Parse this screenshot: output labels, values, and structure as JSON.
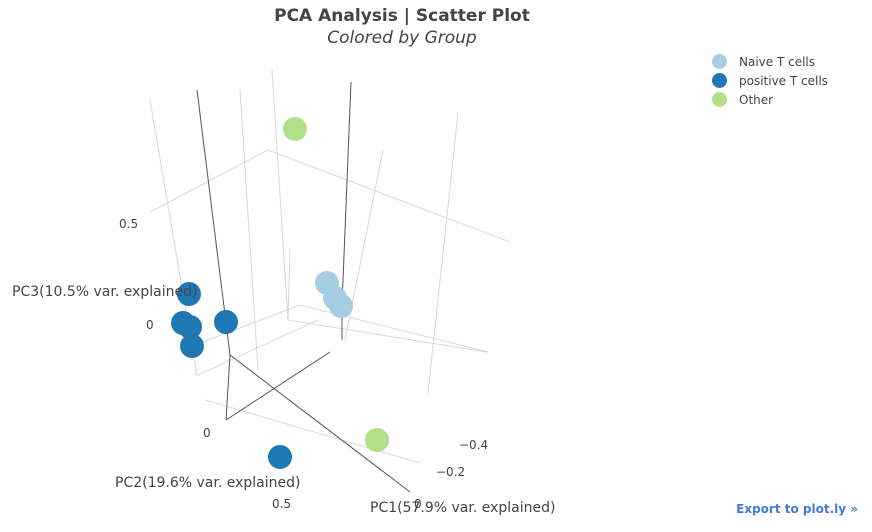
{
  "title": "PCA Analysis | Scatter Plot",
  "subtitle": "Colored by Group",
  "export_label": "Export to plot.ly »",
  "chart_data": {
    "type": "scatter3d",
    "title": "PCA Analysis | Scatter Plot",
    "subtitle": "Colored by Group",
    "axes": {
      "x": {
        "label": "PC1(57.9% var. explained)",
        "ticks": [
          "0",
          "−0.2",
          "−0.4"
        ]
      },
      "y": {
        "label": "PC2(19.6% var. explained)",
        "ticks": [
          "0",
          "0.5"
        ]
      },
      "z": {
        "label": "PC3(10.5% var. explained)",
        "ticks": [
          "0",
          "0.5"
        ]
      }
    },
    "legend": "top-right",
    "grid": true,
    "series": [
      {
        "name": "Naive T cells",
        "color": "#a6cee3",
        "points": [
          {
            "x": -0.3,
            "y": 0.0,
            "z": 0.1
          },
          {
            "x": -0.32,
            "y": 0.05,
            "z": 0.05
          },
          {
            "x": -0.33,
            "y": 0.1,
            "z": 0.02
          }
        ]
      },
      {
        "name": "positive T cells",
        "color": "#1f78b4",
        "points": [
          {
            "x": 0.3,
            "y": 0.0,
            "z": 0.1
          },
          {
            "x": 0.31,
            "y": 0.02,
            "z": 0.0
          },
          {
            "x": 0.32,
            "y": 0.05,
            "z": -0.02
          },
          {
            "x": 0.33,
            "y": 0.08,
            "z": -0.05
          },
          {
            "x": 0.25,
            "y": 0.1,
            "z": 0.0
          },
          {
            "x": 0.35,
            "y": 0.6,
            "z": 0.0
          }
        ]
      },
      {
        "name": "Other",
        "color": "#b2df8a",
        "points": [
          {
            "x": 0.0,
            "y": -0.3,
            "z": 0.7
          },
          {
            "x": -0.2,
            "y": 0.5,
            "z": 0.0
          }
        ]
      }
    ]
  },
  "screen_points": [
    {
      "series": 0,
      "sx": 327,
      "sy": 283
    },
    {
      "series": 0,
      "sx": 335,
      "sy": 298
    },
    {
      "series": 0,
      "sx": 341,
      "sy": 306
    },
    {
      "series": 1,
      "sx": 189,
      "sy": 294
    },
    {
      "series": 1,
      "sx": 183,
      "sy": 323
    },
    {
      "series": 1,
      "sx": 190,
      "sy": 327
    },
    {
      "series": 1,
      "sx": 192,
      "sy": 346
    },
    {
      "series": 1,
      "sx": 226,
      "sy": 322
    },
    {
      "series": 1,
      "sx": 280,
      "sy": 457
    },
    {
      "series": 2,
      "sx": 295,
      "sy": 129
    },
    {
      "series": 2,
      "sx": 377,
      "sy": 440
    }
  ]
}
